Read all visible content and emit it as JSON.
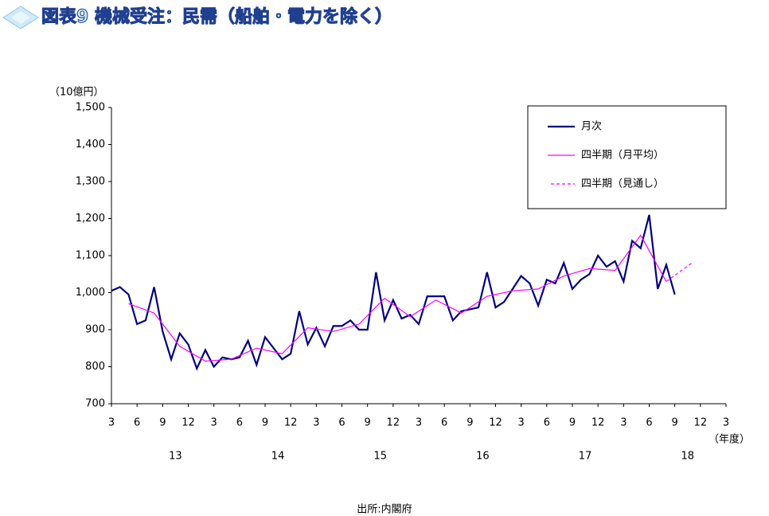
{
  "chart_data": {
    "type": "line",
    "title": "図表9 機械受注：民需（船舶・電力を除く）",
    "y_unit": "（10億円）",
    "x_unit": "（年度）",
    "source": "出所:内閣府",
    "xlim": [
      0,
      72
    ],
    "ylim": [
      700,
      1500
    ],
    "yticks": [
      700,
      800,
      900,
      {
        "value": 1000,
        "label": "1,000"
      },
      {
        "value": 1100,
        "label": "1,100"
      },
      {
        "value": 1200,
        "label": "1,200"
      },
      {
        "value": 1300,
        "label": "1,300"
      },
      {
        "value": 1400,
        "label": "1,400"
      },
      {
        "value": 1500,
        "label": "1,500"
      }
    ],
    "xticks": [
      {
        "value": 0,
        "label": "3"
      },
      {
        "value": 3,
        "label": "6"
      },
      {
        "value": 6,
        "label": "9"
      },
      {
        "value": 9,
        "label": "12"
      },
      {
        "value": 12,
        "label": "3"
      },
      {
        "value": 15,
        "label": "6"
      },
      {
        "value": 18,
        "label": "9"
      },
      {
        "value": 21,
        "label": "12"
      },
      {
        "value": 24,
        "label": "3"
      },
      {
        "value": 27,
        "label": "6"
      },
      {
        "value": 30,
        "label": "9"
      },
      {
        "value": 33,
        "label": "12"
      },
      {
        "value": 36,
        "label": "3"
      },
      {
        "value": 39,
        "label": "6"
      },
      {
        "value": 42,
        "label": "9"
      },
      {
        "value": 45,
        "label": "12"
      },
      {
        "value": 48,
        "label": "3"
      },
      {
        "value": 51,
        "label": "6"
      },
      {
        "value": 54,
        "label": "9"
      },
      {
        "value": 57,
        "label": "12"
      },
      {
        "value": 60,
        "label": "3"
      },
      {
        "value": 63,
        "label": "6"
      },
      {
        "value": 66,
        "label": "9"
      },
      {
        "value": 69,
        "label": "12"
      },
      {
        "value": 72,
        "label": "3"
      }
    ],
    "year_labels": [
      {
        "value": 7.5,
        "label": "13"
      },
      {
        "value": 19.5,
        "label": "14"
      },
      {
        "value": 31.5,
        "label": "15"
      },
      {
        "value": 43.5,
        "label": "16"
      },
      {
        "value": 55.5,
        "label": "17"
      },
      {
        "value": 67.5,
        "label": "18"
      }
    ],
    "series": [
      {
        "name": "月次",
        "color": "#000080",
        "style": "solid",
        "x": [
          0,
          1,
          2,
          3,
          4,
          5,
          6,
          7,
          8,
          9,
          10,
          11,
          12,
          13,
          14,
          15,
          16,
          17,
          18,
          19,
          20,
          21,
          22,
          23,
          24,
          25,
          26,
          27,
          28,
          29,
          30,
          31,
          32,
          33,
          34,
          35,
          36,
          37,
          38,
          39,
          40,
          41,
          42,
          43,
          44,
          45,
          46,
          47,
          48,
          49,
          50,
          51,
          52,
          53,
          54,
          55,
          56,
          57,
          58,
          59,
          60,
          61,
          62,
          63,
          64,
          65,
          66
        ],
        "values": [
          1005,
          1015,
          995,
          915,
          925,
          1015,
          895,
          820,
          890,
          860,
          795,
          845,
          800,
          825,
          820,
          825,
          870,
          805,
          880,
          850,
          820,
          835,
          950,
          860,
          905,
          855,
          910,
          910,
          925,
          900,
          900,
          1055,
          925,
          980,
          930,
          940,
          915,
          990,
          990,
          990,
          925,
          950,
          955,
          960,
          1055,
          960,
          975,
          1010,
          1045,
          1025,
          965,
          1035,
          1025,
          1080,
          1010,
          1035,
          1050,
          1100,
          1070,
          1085,
          1030,
          1140,
          1120,
          1210,
          1010,
          1075,
          995
        ]
      },
      {
        "name": "四半期（月平均）",
        "color": "#ff00ff",
        "style": "solid",
        "x": [
          2,
          5,
          8,
          11,
          14,
          17,
          20,
          23,
          26,
          29,
          32,
          35,
          38,
          41,
          44,
          47,
          50,
          53,
          56,
          59,
          62,
          65
        ],
        "values": [
          970,
          945,
          855,
          815,
          820,
          850,
          835,
          905,
          895,
          915,
          985,
          935,
          980,
          945,
          990,
          1005,
          1010,
          1045,
          1065,
          1060,
          1155,
          1030
        ]
      },
      {
        "name": "四半期（見通し）",
        "color": "#ff00ff",
        "style": "dashed",
        "x": [
          65,
          68
        ],
        "values": [
          1030,
          1080
        ]
      }
    ]
  }
}
